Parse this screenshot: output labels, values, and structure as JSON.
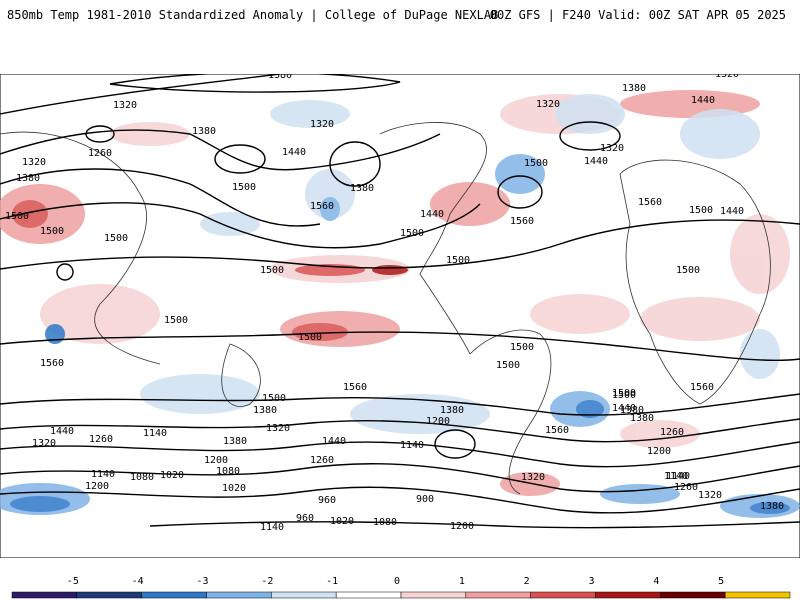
{
  "header": {
    "left": "850mb Temp 1981-2010 Standardized Anomaly | College of DuPage NEXLAB",
    "right": "00Z GFS | F240 Valid: 00Z SAT APR 05 2025"
  },
  "colorbar": {
    "ticks": [
      "-5",
      "-4",
      "-3",
      "-2",
      "-1",
      "0",
      "1",
      "2",
      "3",
      "4",
      "5"
    ],
    "colors": [
      "#2c1a6b",
      "#1f3c7a",
      "#2f78c8",
      "#7fb3e6",
      "#cfe0f2",
      "#ffffff",
      "#f6d2d2",
      "#eea0a0",
      "#d85050",
      "#a81515",
      "#6a0000",
      "#f2c200"
    ]
  },
  "contour_labels": [
    "1380",
    "1320",
    "1260",
    "1320",
    "1380",
    "1500",
    "1440",
    "1320",
    "1380",
    "1500",
    "1320",
    "1380",
    "1320",
    "1440",
    "1380",
    "1500",
    "1500",
    "1560",
    "1500",
    "1440",
    "1560",
    "1500",
    "1320",
    "1440",
    "1500",
    "1560",
    "1500",
    "1500",
    "1500",
    "1560",
    "1500",
    "1500",
    "1500",
    "1500",
    "1560",
    "1440",
    "1380",
    "1260",
    "1200",
    "1320",
    "1260",
    "1140",
    "1380",
    "1320",
    "1440",
    "1140",
    "1200",
    "1380",
    "1140",
    "1080",
    "1020",
    "1200",
    "1080",
    "1020",
    "960",
    "900",
    "960",
    "1020",
    "1080",
    "1140",
    "1200",
    "1320",
    "1260",
    "1140",
    "1380",
    "1320",
    "1500",
    "1500",
    "1560",
    "1200",
    "1140",
    "1260",
    "1380",
    "1560",
    "1380",
    "1440",
    "1500",
    "1440",
    "1500"
  ],
  "map": {
    "blue_anomaly": "#3a86d4",
    "red_anomaly": "#c41e1e"
  }
}
